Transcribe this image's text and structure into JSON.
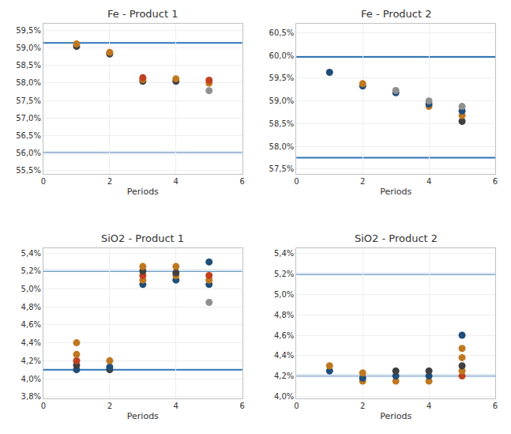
{
  "chart_data": [
    {
      "type": "scatter",
      "title": "Fe - Product 1",
      "xlabel": "Periods",
      "xlim": [
        0,
        6
      ],
      "xticks": [
        0,
        2,
        4,
        6
      ],
      "ylim": [
        0.554,
        0.597
      ],
      "yticks": [
        {
          "value": 0.555,
          "label": "55,5%"
        },
        {
          "value": 0.56,
          "label": "56,0%"
        },
        {
          "value": 0.565,
          "label": "56,5%"
        },
        {
          "value": 0.57,
          "label": "57,0%"
        },
        {
          "value": 0.575,
          "label": "57,5%"
        },
        {
          "value": 0.58,
          "label": "58,0%"
        },
        {
          "value": 0.585,
          "label": "58,5%"
        },
        {
          "value": 0.59,
          "label": "59,0%"
        },
        {
          "value": 0.595,
          "label": "59,5%"
        }
      ],
      "grid": true,
      "hlines": {
        "values": [
          0.5915,
          0.56
        ],
        "color": "#2e75b6"
      },
      "series": [
        {
          "x": [
            1,
            1
          ],
          "values": [
            0.5905,
            0.5912
          ],
          "colors": [
            "#404040",
            "#c07820"
          ]
        },
        {
          "x": [
            2,
            2
          ],
          "values": [
            0.5883,
            0.5888
          ],
          "colors": [
            "#404040",
            "#c07820"
          ]
        },
        {
          "x": [
            3,
            3,
            3
          ],
          "values": [
            0.5805,
            0.581,
            0.5815
          ],
          "colors": [
            "#404040",
            "#c07820",
            "#c04020"
          ]
        },
        {
          "x": [
            4,
            4
          ],
          "values": [
            0.5805,
            0.5812
          ],
          "colors": [
            "#404040",
            "#c07820"
          ]
        },
        {
          "x": [
            5,
            5,
            5
          ],
          "values": [
            0.5778,
            0.58,
            0.5808
          ],
          "colors": [
            "#909090",
            "#c07820",
            "#c04020"
          ]
        }
      ]
    },
    {
      "type": "scatter",
      "title": "Fe - Product 2",
      "xlabel": "Periods",
      "xlim": [
        0,
        6
      ],
      "xticks": [
        0,
        2,
        4,
        6
      ],
      "ylim": [
        0.574,
        0.607
      ],
      "yticks": [
        {
          "value": 0.575,
          "label": "57,5%"
        },
        {
          "value": 0.58,
          "label": "58,0%"
        },
        {
          "value": 0.585,
          "label": "58,5%"
        },
        {
          "value": 0.59,
          "label": "59,0%"
        },
        {
          "value": 0.595,
          "label": "59,5%"
        },
        {
          "value": 0.6,
          "label": "60,0%"
        },
        {
          "value": 0.605,
          "label": "60,5%"
        }
      ],
      "grid": true,
      "hlines": {
        "values": [
          0.5997,
          0.5775
        ],
        "color": "#2e75b6"
      },
      "series": [
        {
          "x": [
            1
          ],
          "values": [
            0.5963
          ],
          "colors": [
            "#1f4e79"
          ]
        },
        {
          "x": [
            2,
            2
          ],
          "values": [
            0.5933,
            0.5938
          ],
          "colors": [
            "#1f4e79",
            "#c07820"
          ]
        },
        {
          "x": [
            3,
            3
          ],
          "values": [
            0.5918,
            0.5923
          ],
          "colors": [
            "#1f4e79",
            "#909090"
          ]
        },
        {
          "x": [
            4,
            4,
            4
          ],
          "values": [
            0.5888,
            0.5893,
            0.59
          ],
          "colors": [
            "#c07820",
            "#1f4e79",
            "#909090"
          ]
        },
        {
          "x": [
            5,
            5,
            5,
            5
          ],
          "values": [
            0.5855,
            0.5868,
            0.5878,
            0.5888
          ],
          "colors": [
            "#404040",
            "#c07820",
            "#1f4e79",
            "#909090"
          ]
        }
      ]
    },
    {
      "type": "scatter",
      "title": "SiO2 - Product 1",
      "xlabel": "Periods",
      "xlim": [
        0,
        6
      ],
      "xticks": [
        0,
        2,
        4,
        6
      ],
      "ylim": [
        0.0378,
        0.0545
      ],
      "yticks": [
        {
          "value": 0.038,
          "label": "3,8%"
        },
        {
          "value": 0.04,
          "label": "4,0%"
        },
        {
          "value": 0.042,
          "label": "4,2%"
        },
        {
          "value": 0.044,
          "label": "4,4%"
        },
        {
          "value": 0.046,
          "label": "4,6%"
        },
        {
          "value": 0.048,
          "label": "4,8%"
        },
        {
          "value": 0.05,
          "label": "5,0%"
        },
        {
          "value": 0.052,
          "label": "5,2%"
        },
        {
          "value": 0.054,
          "label": "5,4%"
        }
      ],
      "grid": true,
      "hlines": {
        "values": [
          0.052,
          0.041
        ],
        "color": "#2e75b6"
      },
      "series": [
        {
          "x": [
            1,
            1,
            1,
            1,
            1
          ],
          "values": [
            0.041,
            0.0415,
            0.042,
            0.0427,
            0.044
          ],
          "colors": [
            "#1f4e79",
            "#404040",
            "#c04020",
            "#c07820",
            "#c07820"
          ]
        },
        {
          "x": [
            2,
            2,
            2
          ],
          "values": [
            0.041,
            0.0413,
            0.042
          ],
          "colors": [
            "#404040",
            "#1f4e79",
            "#c07820"
          ]
        },
        {
          "x": [
            3,
            3,
            3,
            3,
            3
          ],
          "values": [
            0.0505,
            0.051,
            0.0515,
            0.052,
            0.0525
          ],
          "colors": [
            "#1f4e79",
            "#c07820",
            "#c04020",
            "#404040",
            "#c07820"
          ]
        },
        {
          "x": [
            4,
            4,
            4,
            4
          ],
          "values": [
            0.051,
            0.0515,
            0.0518,
            0.0525
          ],
          "colors": [
            "#1f4e79",
            "#c07820",
            "#404040",
            "#c07820"
          ]
        },
        {
          "x": [
            5,
            5,
            5,
            5,
            5
          ],
          "values": [
            0.0485,
            0.0505,
            0.051,
            0.0515,
            0.053
          ],
          "colors": [
            "#909090",
            "#1f4e79",
            "#c07820",
            "#c04020",
            "#1f4e79"
          ]
        }
      ]
    },
    {
      "type": "scatter",
      "title": "SiO2 - Product 2",
      "xlabel": "Periods",
      "xlim": [
        0,
        6
      ],
      "xticks": [
        0,
        2,
        4,
        6
      ],
      "ylim": [
        0.0398,
        0.0545
      ],
      "yticks": [
        {
          "value": 0.04,
          "label": "4,0%"
        },
        {
          "value": 0.042,
          "label": "4,2%"
        },
        {
          "value": 0.044,
          "label": "4,4%"
        },
        {
          "value": 0.046,
          "label": "4,6%"
        },
        {
          "value": 0.048,
          "label": "4,8%"
        },
        {
          "value": 0.05,
          "label": "5,0%"
        },
        {
          "value": 0.052,
          "label": "5,2%"
        },
        {
          "value": 0.054,
          "label": "5,4%"
        }
      ],
      "grid": true,
      "hlines": {
        "values": [
          0.052,
          0.042
        ],
        "color": "#2e75b6"
      },
      "series": [
        {
          "x": [
            1,
            1
          ],
          "values": [
            0.0425,
            0.043
          ],
          "colors": [
            "#1f4e79",
            "#c07820"
          ]
        },
        {
          "x": [
            2,
            2,
            2
          ],
          "values": [
            0.0415,
            0.0418,
            0.0423
          ],
          "colors": [
            "#c07820",
            "#1f4e79",
            "#c07820"
          ]
        },
        {
          "x": [
            3,
            3,
            3
          ],
          "values": [
            0.0415,
            0.042,
            0.0425
          ],
          "colors": [
            "#c07820",
            "#1f4e79",
            "#404040"
          ]
        },
        {
          "x": [
            4,
            4,
            4
          ],
          "values": [
            0.0415,
            0.042,
            0.0425
          ],
          "colors": [
            "#c07820",
            "#1f4e79",
            "#404040"
          ]
        },
        {
          "x": [
            5,
            5,
            5,
            5,
            5,
            5
          ],
          "values": [
            0.042,
            0.0425,
            0.043,
            0.0438,
            0.0447,
            0.046
          ],
          "colors": [
            "#c04020",
            "#c07820",
            "#404040",
            "#c07820",
            "#c07820",
            "#1f4e79"
          ]
        }
      ]
    }
  ]
}
